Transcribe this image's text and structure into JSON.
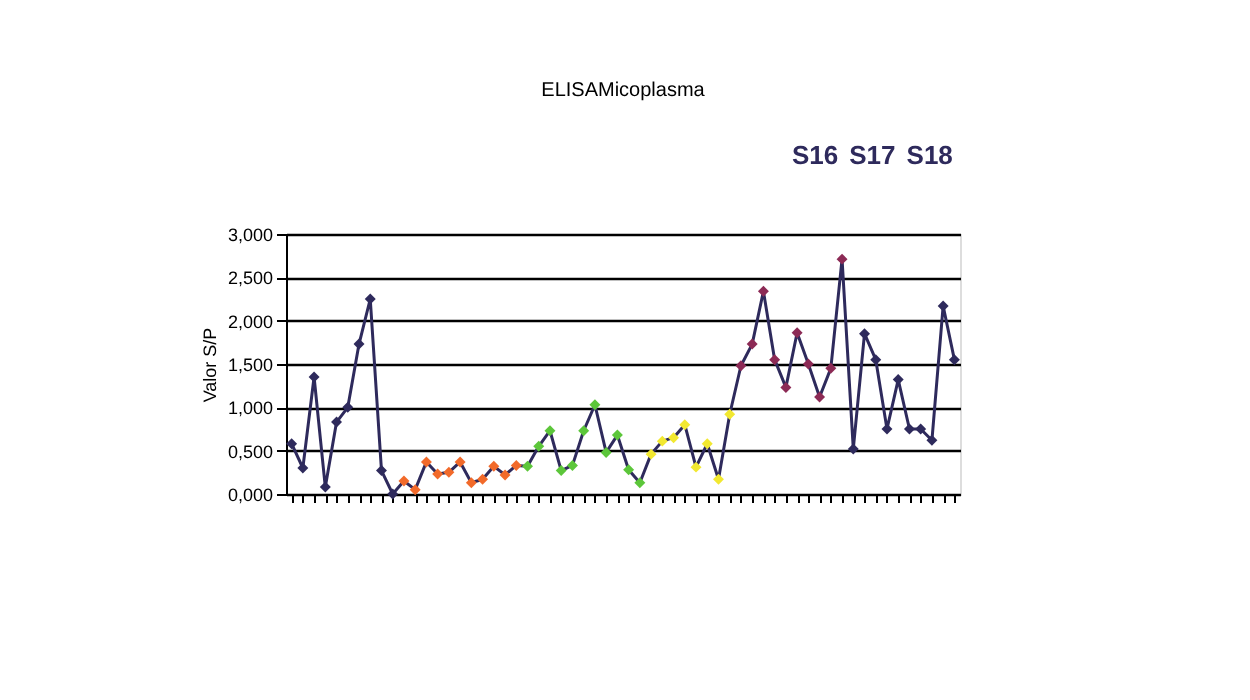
{
  "chart_data": {
    "type": "line",
    "title": "ELISAMicoplasma",
    "ylabel": "Valor S/P",
    "categories": [
      null,
      null,
      null,
      null,
      null,
      null,
      null,
      null,
      null,
      null,
      null,
      null,
      null,
      null,
      null,
      null,
      null,
      null,
      null,
      null,
      null,
      null,
      null,
      null,
      null,
      null,
      null,
      null,
      null,
      null,
      null,
      null,
      null,
      null,
      null,
      null,
      null,
      null,
      null,
      null,
      null,
      null,
      null,
      null,
      null,
      null,
      null,
      null,
      null,
      null,
      null,
      null,
      null,
      null,
      null,
      null,
      null,
      null,
      null,
      null
    ],
    "series": [
      {
        "color": "#2e2a5c",
        "values": [
          0.58,
          0.3,
          1.35,
          0.08,
          0.83,
          1.0,
          1.73,
          2.25,
          0.27,
          0.0,
          0.15,
          0.05,
          0.37,
          0.23,
          0.25,
          0.37,
          0.13,
          0.17,
          0.32,
          0.22,
          0.33,
          0.32,
          0.55,
          0.73,
          0.27,
          0.33,
          0.73,
          1.03,
          0.48,
          0.68,
          0.28,
          0.13,
          0.46,
          0.61,
          0.65,
          0.8,
          0.31,
          0.58,
          0.17,
          0.92,
          1.48,
          1.73,
          2.34,
          1.55,
          1.23,
          1.86,
          1.5,
          1.12,
          1.45,
          2.71,
          0.52,
          1.85,
          1.55,
          0.75,
          1.32,
          0.75,
          0.75,
          0.62,
          2.17,
          1.55
        ],
        "colors": [
          "#2e2a5c",
          "#2e2a5c",
          "#2e2a5c",
          "#2e2a5c",
          "#2e2a5c",
          "#2e2a5c",
          "#2e2a5c",
          "#2e2a5c",
          "#2e2a5c",
          "#2e2a5c",
          "#f26a2a",
          "#f26a2a",
          "#f26a2a",
          "#f26a2a",
          "#f26a2a",
          "#f26a2a",
          "#f26a2a",
          "#f26a2a",
          "#f26a2a",
          "#f26a2a",
          "#f26a2a",
          "#5cc63a",
          "#5cc63a",
          "#5cc63a",
          "#5cc63a",
          "#5cc63a",
          "#5cc63a",
          "#5cc63a",
          "#5cc63a",
          "#5cc63a",
          "#5cc63a",
          "#5cc63a",
          "#f2e830",
          "#f2e830",
          "#f2e830",
          "#f2e830",
          "#f2e830",
          "#f2e830",
          "#f2e830",
          "#f2e830",
          "#8c2a55",
          "#8c2a55",
          "#8c2a55",
          "#8c2a55",
          "#8c2a55",
          "#8c2a55",
          "#8c2a55",
          "#8c2a55",
          "#8c2a55",
          "#8c2a55",
          "#2e2a5c",
          "#2e2a5c",
          "#2e2a5c",
          "#2e2a5c",
          "#2e2a5c",
          "#2e2a5c",
          "#2e2a5c",
          "#2e2a5c",
          "#2e2a5c",
          "#2e2a5c"
        ]
      }
    ],
    "ylim": [
      0,
      3
    ],
    "yticks": [
      {
        "value": 0,
        "label": "0,000"
      },
      {
        "value": 0.5,
        "label": "0,500"
      },
      {
        "value": 1,
        "label": "1,000"
      },
      {
        "value": 1.5,
        "label": "1,500"
      },
      {
        "value": 2,
        "label": "2,000"
      },
      {
        "value": 2.5,
        "label": "2,500"
      },
      {
        "value": 3,
        "label": "3,000"
      }
    ],
    "grid": "y",
    "marker": "diamond",
    "line_style": "solid",
    "tick_labels": "y",
    "annotations": [
      "S16",
      "S17",
      "S18"
    ]
  }
}
